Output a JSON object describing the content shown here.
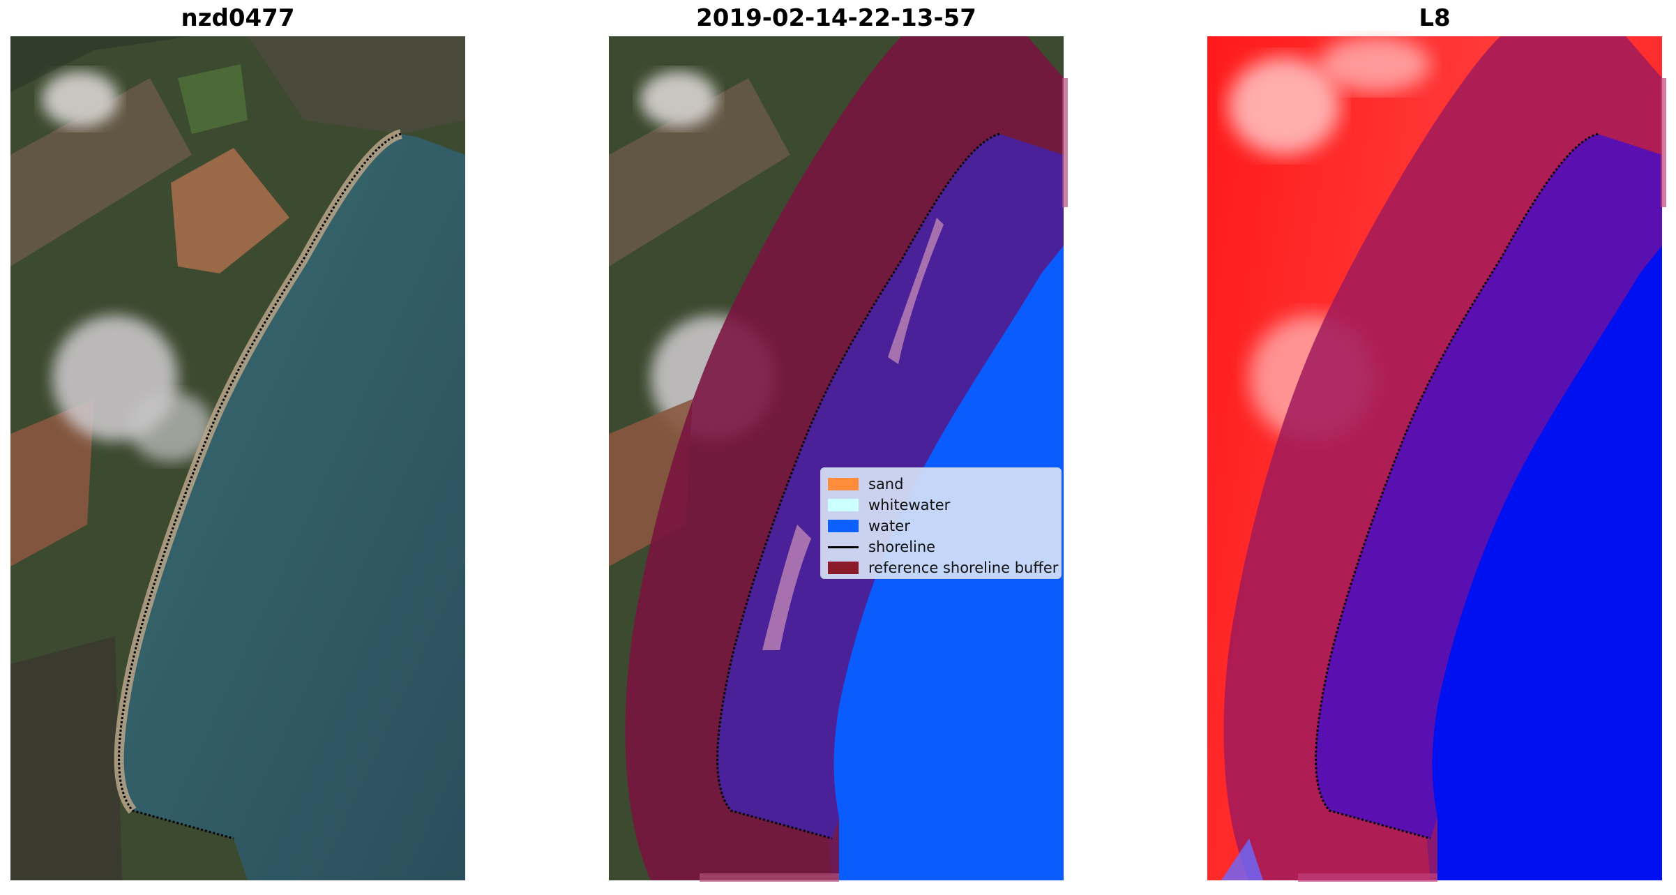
{
  "titles": {
    "site": "nzd0477",
    "date": "2019-02-14-22-13-57",
    "satellite": "L8"
  },
  "legend": {
    "items": [
      {
        "label": "sand",
        "kind": "patch",
        "color": "#ff8c3a"
      },
      {
        "label": "whitewater",
        "kind": "patch",
        "color": "#ccffff"
      },
      {
        "label": "water",
        "kind": "patch",
        "color": "#0b60ff"
      },
      {
        "label": "shoreline",
        "kind": "line",
        "color": "#000000"
      },
      {
        "label": "reference shoreline buffer",
        "kind": "patch",
        "color": "#8b1a2a"
      }
    ]
  },
  "colors": {
    "buffer": "#7a1240",
    "water_class": "#0a5cff",
    "water_in_buffer": "#4a2199",
    "index_land": "#ff2020",
    "index_water": "#0010f0",
    "rgb_sea": "#2f5a64",
    "rgb_land": "#36462c"
  }
}
